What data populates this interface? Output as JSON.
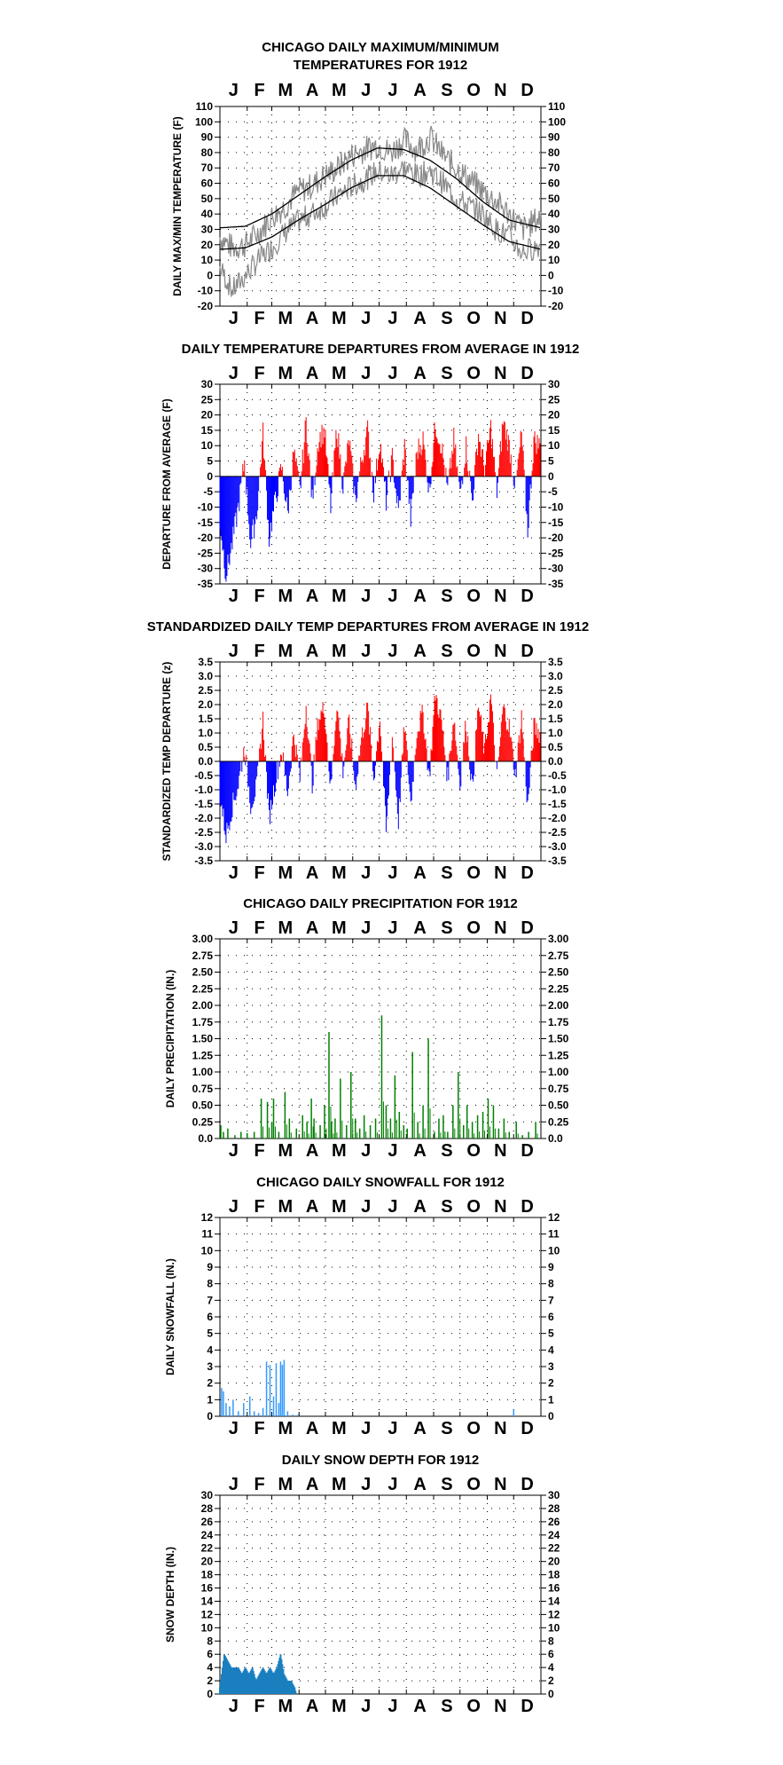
{
  "chart_data": [
    {
      "type": "line",
      "title": "CHICAGO DAILY MAXIMUM/MINIMUM\nTEMPERATURES FOR 1912",
      "ylabel": "DAILY MAX/MIN TEMPERATURE (F)",
      "months": [
        "J",
        "F",
        "M",
        "A",
        "M",
        "J",
        "J",
        "A",
        "S",
        "O",
        "N",
        "D"
      ],
      "ylim": [
        -20,
        110
      ],
      "yticks": [
        -20,
        -10,
        0,
        10,
        20,
        30,
        40,
        50,
        60,
        70,
        80,
        90,
        100,
        110
      ],
      "grid": "dotted",
      "normals": {
        "day": [
          1,
          30,
          60,
          90,
          120,
          150,
          180,
          210,
          240,
          270,
          300,
          330,
          366
        ],
        "max": [
          31,
          32,
          40,
          52,
          64,
          75,
          83,
          82,
          75,
          63,
          48,
          36,
          31
        ],
        "min": [
          17,
          18,
          25,
          36,
          46,
          57,
          65,
          65,
          57,
          45,
          33,
          22,
          17
        ]
      },
      "observed_max_approx": {
        "day": [
          1,
          15,
          30,
          45,
          60,
          75,
          90,
          105,
          120,
          135,
          150,
          165,
          180,
          195,
          210,
          225,
          240,
          255,
          270,
          285,
          300,
          315,
          330,
          345,
          366
        ],
        "value": [
          25,
          18,
          20,
          28,
          38,
          45,
          55,
          58,
          65,
          70,
          78,
          82,
          85,
          80,
          88,
          82,
          90,
          78,
          70,
          62,
          55,
          48,
          40,
          30,
          38
        ]
      },
      "observed_min_approx": {
        "day": [
          1,
          15,
          30,
          45,
          60,
          75,
          90,
          105,
          120,
          135,
          150,
          165,
          180,
          195,
          210,
          225,
          240,
          255,
          270,
          285,
          300,
          315,
          330,
          345,
          366
        ],
        "value": [
          5,
          -10,
          0,
          10,
          18,
          28,
          35,
          40,
          45,
          52,
          58,
          62,
          68,
          65,
          70,
          65,
          68,
          60,
          50,
          45,
          40,
          30,
          25,
          15,
          20
        ]
      }
    },
    {
      "type": "bar",
      "title": "DAILY TEMPERATURE DEPARTURES FROM AVERAGE IN 1912",
      "ylabel": "DEPARTURE FROM AVERAGE (F)",
      "months": [
        "J",
        "F",
        "M",
        "A",
        "M",
        "J",
        "J",
        "A",
        "S",
        "O",
        "N",
        "D"
      ],
      "ylim": [
        -35,
        30
      ],
      "yticks": [
        -35,
        -30,
        -25,
        -20,
        -15,
        -10,
        -5,
        0,
        5,
        10,
        15,
        20,
        25,
        30
      ],
      "grid": "dotted",
      "colors": {
        "positive": "#ff0000",
        "negative": "#0000ff"
      },
      "approx_departures": {
        "day": [
          1,
          8,
          15,
          22,
          29,
          36,
          43,
          50,
          57,
          64,
          71,
          78,
          85,
          92,
          99,
          106,
          113,
          120,
          127,
          134,
          141,
          148,
          155,
          162,
          169,
          176,
          183,
          190,
          197,
          204,
          211,
          218,
          225,
          232,
          239,
          246,
          253,
          260,
          267,
          274,
          281,
          288,
          295,
          302,
          309,
          316,
          323,
          330,
          337,
          344,
          351,
          358,
          365
        ],
        "value": [
          -15,
          -32,
          -22,
          -10,
          5,
          -22,
          -12,
          14,
          -20,
          -8,
          3,
          -12,
          8,
          -5,
          18,
          -8,
          12,
          15,
          -10,
          16,
          -3,
          12,
          -8,
          5,
          15,
          -5,
          12,
          -8,
          6,
          -12,
          10,
          -14,
          8,
          12,
          -5,
          17,
          10,
          -5,
          12,
          -6,
          10,
          -8,
          14,
          2,
          16,
          -5,
          18,
          10,
          -4,
          14,
          -18,
          12,
          10
        ]
      }
    },
    {
      "type": "bar",
      "title": "STANDARDIZED DAILY TEMP DEPARTURES FROM AVERAGE IN 1912",
      "ylabel": "STANDARDIZED TEMP DEPARTURE (z)",
      "months": [
        "J",
        "F",
        "M",
        "A",
        "M",
        "J",
        "J",
        "A",
        "S",
        "O",
        "N",
        "D"
      ],
      "ylim": [
        -3.5,
        3.5
      ],
      "yticks": [
        -3.5,
        -3.0,
        -2.5,
        -2.0,
        -1.5,
        -1.0,
        -0.5,
        0.0,
        0.5,
        1.0,
        1.5,
        2.0,
        2.5,
        3.0,
        3.5
      ],
      "grid": "dotted",
      "colors": {
        "positive": "#ff0000",
        "negative": "#0000ff"
      },
      "approx_departures": {
        "day": [
          1,
          8,
          15,
          22,
          29,
          36,
          43,
          50,
          57,
          64,
          71,
          78,
          85,
          92,
          99,
          106,
          113,
          120,
          127,
          134,
          141,
          148,
          155,
          162,
          169,
          176,
          183,
          190,
          197,
          204,
          211,
          218,
          225,
          232,
          239,
          246,
          253,
          260,
          267,
          274,
          281,
          288,
          295,
          302,
          309,
          316,
          323,
          330,
          337,
          344,
          351,
          358,
          365
        ],
        "value": [
          -1.2,
          -2.6,
          -1.6,
          -0.8,
          0.5,
          -1.5,
          -0.9,
          1.5,
          -2.0,
          -0.7,
          0.4,
          -1.1,
          1.0,
          -0.6,
          2.0,
          -0.8,
          1.5,
          1.9,
          -1.0,
          2.1,
          -0.3,
          1.4,
          -0.9,
          0.8,
          1.9,
          -0.6,
          1.6,
          -2.5,
          0.9,
          -2.1,
          1.3,
          -1.5,
          1.1,
          1.7,
          -0.6,
          2.4,
          1.4,
          -0.6,
          1.6,
          -0.8,
          1.4,
          -1.0,
          2.0,
          0.3,
          2.3,
          -0.6,
          1.9,
          1.2,
          -0.5,
          1.6,
          -1.6,
          1.2,
          1.0
        ]
      }
    },
    {
      "type": "bar",
      "title": "CHICAGO DAILY PRECIPITATION FOR 1912",
      "ylabel": "DAILY PRECIPITATION (IN.)",
      "months": [
        "J",
        "F",
        "M",
        "A",
        "M",
        "J",
        "J",
        "A",
        "S",
        "O",
        "N",
        "D"
      ],
      "ylim": [
        0.0,
        3.0
      ],
      "yticks": [
        0.0,
        0.25,
        0.5,
        0.75,
        1.0,
        1.25,
        1.5,
        1.75,
        2.0,
        2.25,
        2.5,
        2.75,
        3.0
      ],
      "left_tick_labels": [
        "0.0",
        "0.25",
        "0.50",
        "0.75",
        "1.00",
        "1.25",
        "1.50",
        "1.75",
        "2.00",
        "2.25",
        "2.50",
        "2.75",
        "3.00"
      ],
      "right_tick_labels": [
        "0.0",
        "0.25",
        "0.50",
        "0.75",
        "1.00",
        "1.25",
        "1.50",
        "1.75",
        "2.00",
        "2.25",
        "2.50",
        "2.75",
        "3.00"
      ],
      "grid": "dotted",
      "color": "#008000",
      "approx_values": {
        "day": [
          2,
          5,
          10,
          18,
          25,
          32,
          40,
          48,
          55,
          60,
          62,
          68,
          75,
          80,
          88,
          95,
          100,
          105,
          108,
          115,
          120,
          125,
          128,
          132,
          138,
          145,
          150,
          155,
          160,
          165,
          172,
          178,
          185,
          190,
          195,
          200,
          205,
          210,
          214,
          220,
          226,
          232,
          238,
          245,
          250,
          255,
          260,
          266,
          272,
          278,
          282,
          288,
          294,
          300,
          306,
          312,
          318,
          324,
          330,
          338,
          345,
          352,
          360
        ],
        "value": [
          0.2,
          0.1,
          0.15,
          0.05,
          0.1,
          0.08,
          0.1,
          0.6,
          0.55,
          0.25,
          0.6,
          0.1,
          0.7,
          0.3,
          0.15,
          0.35,
          0.25,
          0.6,
          0.3,
          0.2,
          0.5,
          1.6,
          0.25,
          0.3,
          0.9,
          0.2,
          1.0,
          0.3,
          0.15,
          0.35,
          0.2,
          0.3,
          1.85,
          0.5,
          0.3,
          0.95,
          0.4,
          0.2,
          0.15,
          1.3,
          0.25,
          0.5,
          1.5,
          0.1,
          0.3,
          0.35,
          0.1,
          0.5,
          1.0,
          0.2,
          0.5,
          0.25,
          0.35,
          0.4,
          0.6,
          0.5,
          0.15,
          0.3,
          0.1,
          0.25,
          0.05,
          0.1,
          0.25
        ]
      }
    },
    {
      "type": "bar",
      "title": "CHICAGO DAILY SNOWFALL FOR 1912",
      "ylabel": "DAILY SNOWFALL (IN.)",
      "months": [
        "J",
        "F",
        "M",
        "A",
        "M",
        "J",
        "J",
        "A",
        "S",
        "O",
        "N",
        "D"
      ],
      "ylim": [
        0,
        12
      ],
      "yticks": [
        0,
        1,
        2,
        3,
        4,
        5,
        6,
        7,
        8,
        9,
        10,
        11,
        12
      ],
      "grid": "dotted",
      "color": "#3399ff",
      "approx_values": {
        "day": [
          3,
          5,
          8,
          12,
          16,
          22,
          28,
          35,
          40,
          45,
          50,
          54,
          58,
          62,
          65,
          68,
          70,
          72,
          74,
          78,
          84,
          90,
          335
        ],
        "value": [
          1.7,
          1.5,
          0.8,
          0.6,
          1.0,
          0.3,
          0.8,
          1.2,
          0.3,
          0.2,
          0.5,
          3.3,
          3.1,
          1.2,
          3.2,
          0.8,
          3.3,
          3.1,
          3.4,
          0.3,
          0.1,
          0.1,
          0.4
        ]
      }
    },
    {
      "type": "area",
      "title": "DAILY SNOW DEPTH FOR 1912",
      "ylabel": "SNOW DEPTH (IN.)",
      "months": [
        "J",
        "F",
        "M",
        "A",
        "M",
        "J",
        "J",
        "A",
        "S",
        "O",
        "N",
        "D"
      ],
      "ylim": [
        0,
        30
      ],
      "yticks": [
        0,
        2,
        4,
        6,
        8,
        10,
        12,
        14,
        16,
        18,
        20,
        22,
        24,
        26,
        28,
        30
      ],
      "grid": "dotted",
      "color": "#1a7fbf",
      "approx_values": {
        "day": [
          1,
          3,
          6,
          10,
          14,
          18,
          22,
          26,
          30,
          34,
          38,
          42,
          46,
          50,
          54,
          58,
          62,
          66,
          70,
          74,
          78,
          82,
          86,
          88
        ],
        "value": [
          1,
          3,
          6,
          5,
          4,
          4,
          4,
          3,
          4,
          3,
          4,
          2,
          3,
          4,
          3,
          4,
          3,
          4,
          6,
          3,
          2,
          2,
          1,
          0
        ]
      }
    }
  ]
}
